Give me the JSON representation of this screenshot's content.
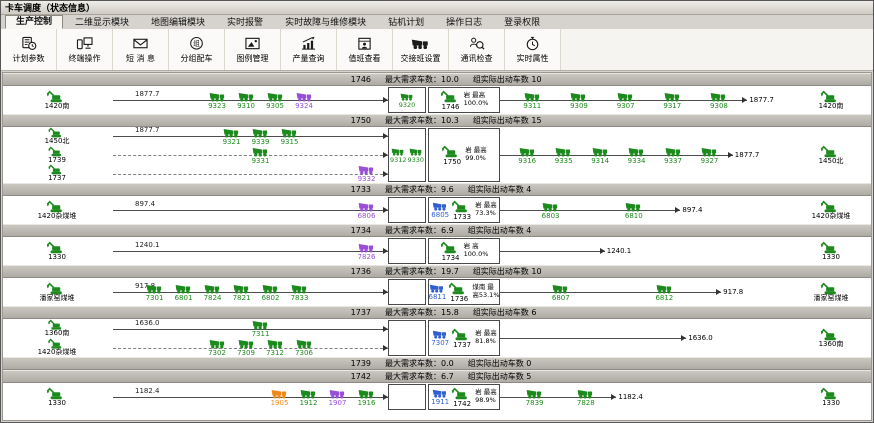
{
  "window": {
    "title": "卡车调度（状态信息）"
  },
  "colors": {
    "green": "#1d8a1d",
    "purple": "#9a4fd8",
    "blue": "#2f5fd0",
    "orange": "#ef8a1a"
  },
  "menu": {
    "tabs": [
      {
        "label": "生产控制",
        "name": "production-control",
        "active": true
      },
      {
        "label": "二维显示模块",
        "name": "2d-display-module",
        "active": false
      },
      {
        "label": "地图编辑模块",
        "name": "map-edit-module",
        "active": false
      },
      {
        "label": "实时报警",
        "name": "realtime-alarm",
        "active": false
      },
      {
        "label": "实时故障与维修模块",
        "name": "fault-repair-module",
        "active": false
      },
      {
        "label": "钻机计划",
        "name": "drill-plan",
        "active": false
      },
      {
        "label": "操作日志",
        "name": "operation-log",
        "active": false
      },
      {
        "label": "登录权限",
        "name": "login-permission",
        "active": false
      }
    ]
  },
  "toolbar": {
    "buttons": [
      {
        "label": "计划参数",
        "icon": "plan",
        "name": "plan-params"
      },
      {
        "label": "终端操作",
        "icon": "term",
        "name": "terminal-ops"
      },
      {
        "label": "短 消 息",
        "icon": "msg",
        "name": "short-message"
      },
      {
        "label": "分组配车",
        "icon": "group",
        "name": "group-assign"
      },
      {
        "label": "图例管理",
        "icon": "legend",
        "name": "legend-manage"
      },
      {
        "label": "产量查询",
        "icon": "chart",
        "name": "output-query"
      },
      {
        "label": "值班查看",
        "icon": "duty",
        "name": "duty-view"
      },
      {
        "label": "交接班设置",
        "icon": "shift",
        "name": "shift-settings"
      },
      {
        "label": "通讯检查",
        "icon": "comm",
        "name": "comm-check"
      },
      {
        "label": "实时属性",
        "icon": "clock",
        "name": "realtime-attr"
      }
    ]
  },
  "labels": {
    "max_prefix": "最大需求车数：",
    "actual_prefix": "组实际出动车数 "
  },
  "groups": [
    {
      "id": "1746",
      "demand": "10.0",
      "actual": "10",
      "lanes": [
        {
          "ep": "1420南",
          "style": "solid",
          "start": "1877.7",
          "align": "center",
          "trucks": [
            {
              "id": "9323"
            },
            {
              "id": "9310"
            },
            {
              "id": "9305"
            },
            {
              "id": "9324",
              "c": "purple"
            }
          ]
        }
      ],
      "queue": [
        {
          "id": "9320"
        }
      ],
      "shovel": {
        "id": "1746",
        "lines": [
          "岩 最高",
          "100.0%"
        ]
      },
      "out": {
        "w": 85,
        "end": "1877.7",
        "trucks": [
          {
            "id": "9311"
          },
          {
            "id": "9309"
          },
          {
            "id": "9307"
          },
          {
            "id": "9317"
          },
          {
            "id": "9308"
          }
        ]
      },
      "rep": "1420南"
    },
    {
      "id": "1750",
      "demand": "10.3",
      "actual": "15",
      "lanes": [
        {
          "ep": "1450北",
          "style": "solid",
          "start": "1877.7",
          "align": "center",
          "trucks": [
            {
              "id": "9321"
            },
            {
              "id": "9339"
            },
            {
              "id": "9315"
            }
          ]
        },
        {
          "ep": "1739",
          "style": "dashed",
          "start": "",
          "align": "center",
          "trucks": [
            {
              "id": "9331"
            }
          ]
        },
        {
          "ep": "1737",
          "style": "dashed",
          "start": "",
          "align": "right",
          "trucks": [
            {
              "id": "9332",
              "c": "purple"
            }
          ]
        }
      ],
      "queue": [
        {
          "id": "9312"
        },
        {
          "id": "9330"
        }
      ],
      "shovel": {
        "id": "1750",
        "lines": [
          "岩 最高",
          "99.0%"
        ]
      },
      "out": {
        "w": 80,
        "end": "1877.7",
        "trucks": [
          {
            "id": "9316"
          },
          {
            "id": "9335"
          },
          {
            "id": "9314"
          },
          {
            "id": "9334"
          },
          {
            "id": "9337"
          },
          {
            "id": "9327"
          }
        ]
      },
      "rep": "1450北"
    },
    {
      "id": "1733",
      "demand": "9.6",
      "actual": "4",
      "lanes": [
        {
          "ep": "1420杂煤堆",
          "style": "solid",
          "start": "897.4",
          "align": "right",
          "trucks": [
            {
              "id": "6806",
              "c": "purple"
            }
          ]
        }
      ],
      "queue": [],
      "shovel": {
        "truck": {
          "id": "6805",
          "c": "blue"
        },
        "id": "1733",
        "lines": [
          "岩 最高",
          "73.3%"
        ]
      },
      "out": {
        "w": 62,
        "end": "897.4",
        "trucks": [
          {
            "id": "6803"
          },
          {
            "id": "6810"
          }
        ]
      },
      "rep": "1420杂煤堆"
    },
    {
      "id": "1734",
      "demand": "6.9",
      "actual": "4",
      "lanes": [
        {
          "ep": "1330",
          "style": "solid",
          "start": "1240.1",
          "align": "right",
          "trucks": [
            {
              "id": "7826",
              "c": "purple"
            }
          ]
        }
      ],
      "queue": [],
      "shovel": {
        "id": "1734",
        "lines": [
          "岩 高",
          "100.0%"
        ]
      },
      "out": {
        "w": 36,
        "end": "1240.1",
        "trucks": []
      },
      "rep": "1330"
    },
    {
      "id": "1736",
      "demand": "19.7",
      "actual": "10",
      "lanes": [
        {
          "ep": "潘家窑煤堆",
          "style": "solid",
          "start": "917.8",
          "align": "left",
          "trucks": [
            {
              "id": "7301"
            },
            {
              "id": "6801"
            },
            {
              "id": "7824"
            },
            {
              "id": "7821"
            },
            {
              "id": "6802"
            },
            {
              "id": "7833"
            }
          ]
        }
      ],
      "queue": [],
      "shovel": {
        "truck": {
          "id": "6811",
          "c": "blue"
        },
        "id": "1736",
        "lines": [
          "煤南 最",
          "高53.1%"
        ]
      },
      "out": {
        "w": 76,
        "end": "917.8",
        "trucks": [
          {
            "id": "6807"
          },
          {
            "id": "6812"
          }
        ]
      },
      "rep": "潘家窑煤堆"
    },
    {
      "id": "1737",
      "demand": "15.8",
      "actual": "6",
      "lanes": [
        {
          "ep": "1360南",
          "style": "solid",
          "start": "1636.0",
          "align": "center",
          "trucks": [
            {
              "id": "7311"
            }
          ]
        },
        {
          "ep": "1420杂煤堆",
          "style": "dashed",
          "start": "",
          "align": "center",
          "trucks": [
            {
              "id": "7302"
            },
            {
              "id": "7309"
            },
            {
              "id": "7312"
            },
            {
              "id": "7306"
            }
          ]
        }
      ],
      "queue": [],
      "shovel": {
        "truck": {
          "id": "7307",
          "c": "blue"
        },
        "id": "1737",
        "lines": [
          "岩 最高",
          "81.8%"
        ]
      },
      "out": {
        "w": 64,
        "end": "1636.0",
        "trucks": []
      },
      "rep": "1360南"
    },
    {
      "id": "1739",
      "demand": "0.0",
      "actual": "0",
      "lanes": [],
      "queue": [],
      "shovel": null,
      "out": null,
      "rep": null
    },
    {
      "id": "1742",
      "demand": "6.7",
      "actual": "5",
      "lanes": [
        {
          "ep": "1330",
          "style": "solid",
          "start": "1182.4",
          "align": "right",
          "trucks": [
            {
              "id": "1905",
              "c": "orange"
            },
            {
              "id": "1912"
            },
            {
              "id": "1907",
              "c": "purple"
            },
            {
              "id": "1916"
            }
          ]
        }
      ],
      "queue": [],
      "shovel": {
        "truck": {
          "id": "1911",
          "c": "blue"
        },
        "id": "1742",
        "lines": [
          "岩 最高",
          "98.9%"
        ]
      },
      "out": {
        "w": 40,
        "end": "1182.4",
        "trucks": [
          {
            "id": "7839"
          },
          {
            "id": "7828"
          }
        ]
      },
      "rep": "1330"
    }
  ]
}
